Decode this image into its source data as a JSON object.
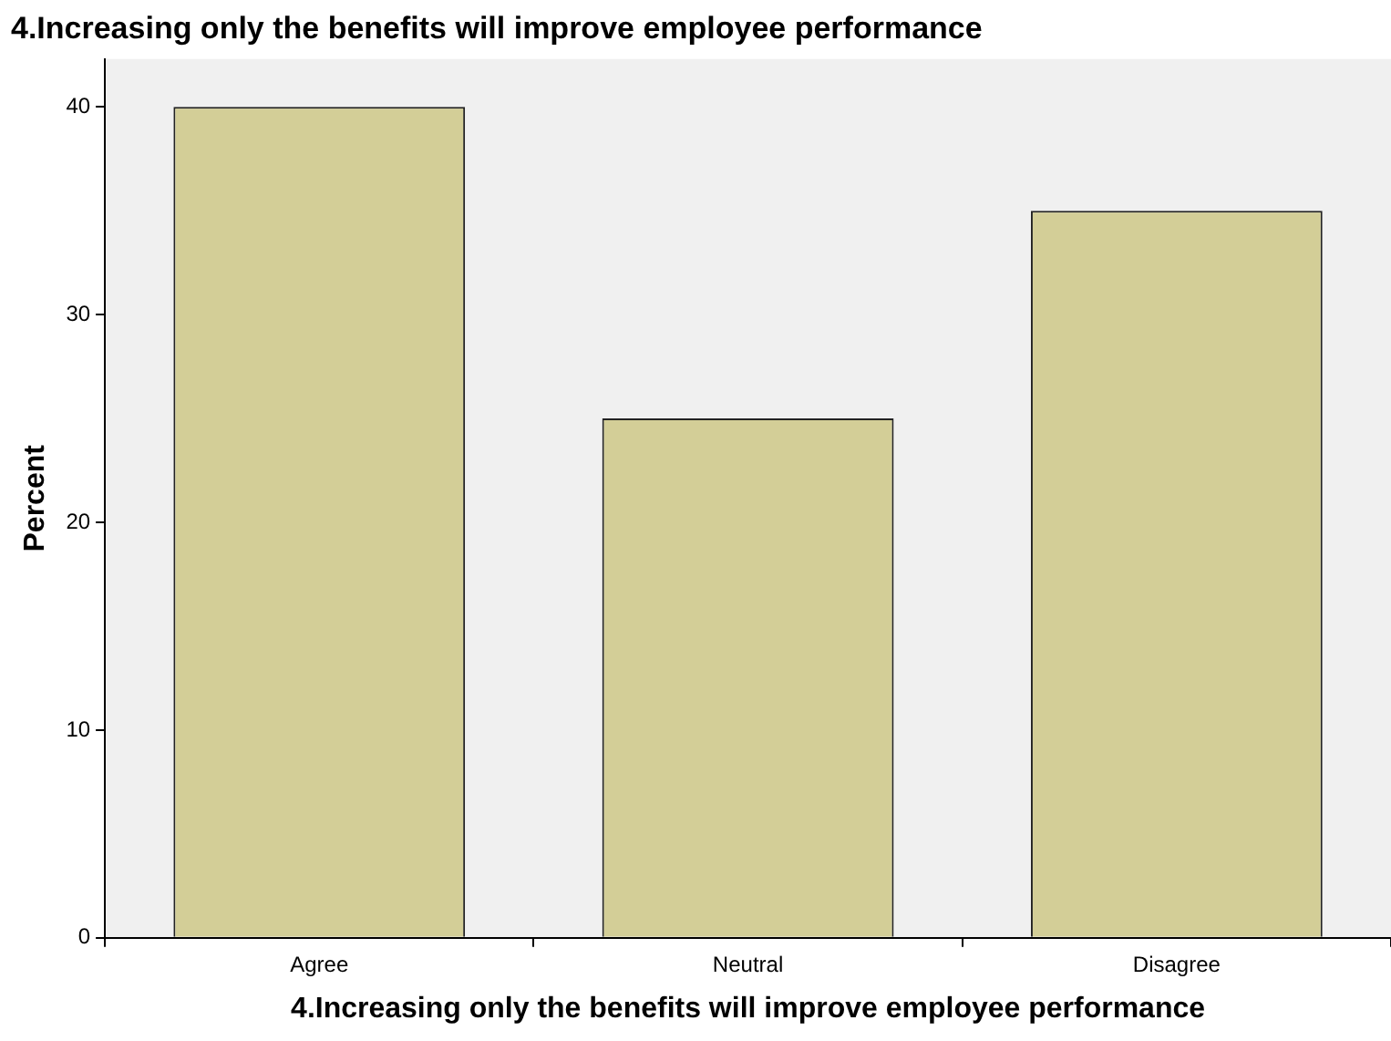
{
  "chart_data": {
    "type": "bar",
    "title": "4.Increasing only the benefits will improve employee performance",
    "xlabel": "4.Increasing only the benefits will improve employee performance",
    "ylabel": "Percent",
    "categories": [
      "Agree",
      "Neutral",
      "Disagree"
    ],
    "series": [
      {
        "color": "#d3ce97",
        "values": [
          40,
          25,
          35
        ]
      }
    ],
    "ylim": [
      0,
      42.3
    ],
    "yticks": [
      0,
      10,
      20,
      30,
      40
    ],
    "grid": false,
    "legend": false
  }
}
